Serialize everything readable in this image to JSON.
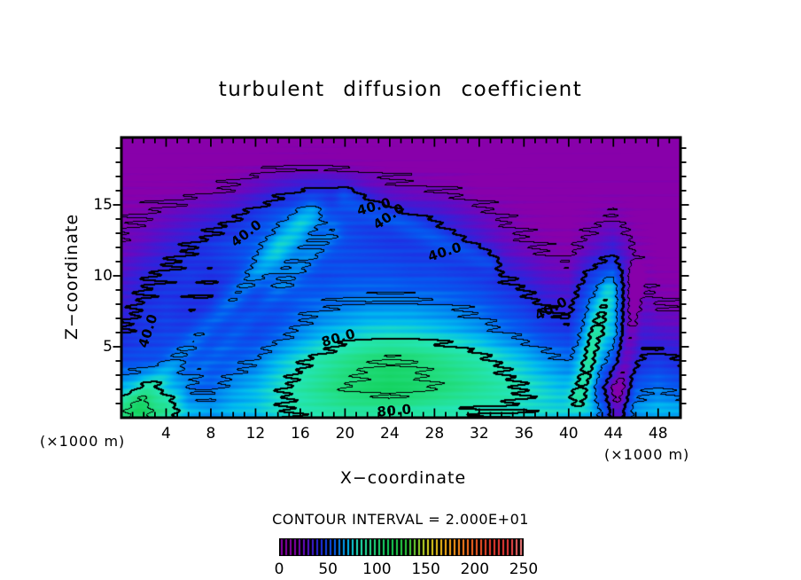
{
  "title": "turbulent diffusion coefficient",
  "axis": {
    "x_label": "X−coordinate",
    "z_label": "Z−coordinate",
    "unit_left": "(×1000 m)",
    "unit_right": "(×1000 m)"
  },
  "contour_note": "CONTOUR INTERVAL = 2.000E+01",
  "chart_data": {
    "type": "heatmap",
    "title": "turbulent diffusion coefficient",
    "xlabel": "X−coordinate",
    "ylabel": "Z−coordinate",
    "x_units": "×1000 m",
    "z_units": "×1000 m",
    "xlim": [
      0,
      50
    ],
    "zlim": [
      0,
      19.75
    ],
    "x_ticks_labeled": [
      4,
      8,
      12,
      16,
      20,
      24,
      28,
      32,
      36,
      40,
      44,
      48
    ],
    "z_ticks_labeled": [
      5,
      10,
      15
    ],
    "minor_tick_step": 1,
    "grid": false,
    "contour_interval": 20,
    "contour_levels": [
      20,
      40,
      60,
      80,
      100
    ],
    "thick_levels": [
      40,
      80
    ],
    "x": [
      0,
      2,
      4,
      6,
      8,
      10,
      12,
      14,
      16,
      18,
      20,
      22,
      24,
      26,
      28,
      30,
      32,
      34,
      36,
      38,
      40,
      42,
      44,
      46,
      48,
      50
    ],
    "z": [
      19.5,
      18,
      16,
      14,
      12,
      10,
      8,
      6,
      4,
      2,
      0.5
    ],
    "values": [
      [
        12,
        12,
        12,
        12,
        12,
        12,
        12,
        13,
        13,
        13,
        13,
        12,
        12,
        12,
        12,
        12,
        12,
        12,
        12,
        12,
        12,
        12,
        12,
        12,
        12,
        12
      ],
      [
        13,
        13,
        13,
        13,
        13,
        13,
        14,
        15,
        16,
        16,
        15,
        14,
        13,
        13,
        13,
        13,
        13,
        13,
        13,
        13,
        13,
        13,
        13,
        13,
        13,
        13
      ],
      [
        15,
        15,
        15,
        16,
        18,
        22,
        28,
        35,
        40,
        42,
        38,
        30,
        25,
        22,
        20,
        18,
        14,
        14,
        14,
        14,
        14,
        14,
        14,
        14,
        14,
        14
      ],
      [
        18,
        20,
        25,
        30,
        35,
        40,
        48,
        55,
        60,
        55,
        50,
        46,
        42,
        40,
        38,
        32,
        26,
        20,
        16,
        14,
        13,
        16,
        20,
        14,
        12,
        12
      ],
      [
        22,
        28,
        35,
        40,
        45,
        50,
        55,
        62,
        58,
        52,
        50,
        48,
        46,
        45,
        44,
        40,
        35,
        28,
        22,
        18,
        16,
        25,
        35,
        18,
        13,
        12
      ],
      [
        30,
        38,
        42,
        45,
        42,
        45,
        50,
        55,
        52,
        50,
        52,
        52,
        52,
        50,
        50,
        48,
        45,
        40,
        35,
        28,
        25,
        45,
        55,
        25,
        15,
        14
      ],
      [
        35,
        42,
        45,
        42,
        40,
        45,
        42,
        48,
        55,
        58,
        60,
        62,
        62,
        62,
        60,
        58,
        55,
        50,
        45,
        38,
        35,
        60,
        65,
        30,
        20,
        18
      ],
      [
        40,
        45,
        48,
        45,
        42,
        45,
        48,
        55,
        62,
        68,
        72,
        75,
        76,
        75,
        73,
        70,
        66,
        60,
        55,
        48,
        45,
        68,
        70,
        35,
        30,
        28
      ],
      [
        50,
        52,
        50,
        46,
        48,
        55,
        60,
        70,
        78,
        85,
        92,
        98,
        102,
        100,
        95,
        90,
        85,
        78,
        72,
        65,
        60,
        70,
        55,
        40,
        45,
        40
      ],
      [
        70,
        75,
        65,
        55,
        58,
        65,
        70,
        78,
        85,
        92,
        100,
        105,
        108,
        105,
        100,
        95,
        90,
        85,
        80,
        75,
        70,
        65,
        25,
        55,
        60,
        55
      ],
      [
        95,
        100,
        85,
        70,
        65,
        70,
        72,
        78,
        82,
        85,
        88,
        88,
        88,
        86,
        84,
        82,
        80,
        80,
        78,
        76,
        74,
        70,
        45,
        65,
        70,
        68
      ]
    ],
    "streaks": [
      {
        "x1": 1.5,
        "z1": 1.0,
        "x2": 17.0,
        "z2": 14.5,
        "amp": 14,
        "width": 1.0
      },
      {
        "x1": 4.0,
        "z1": 1.0,
        "x2": 19.0,
        "z2": 13.0,
        "amp": 8,
        "width": 0.8
      },
      {
        "x1": 20.0,
        "z1": 15.5,
        "x2": 33.0,
        "z2": 11.0,
        "amp": 12,
        "width": 0.8
      },
      {
        "x1": 41.0,
        "z1": 1.5,
        "x2": 43.5,
        "z2": 9.0,
        "amp": 16,
        "width": 0.9
      },
      {
        "x1": 44.5,
        "z1": 0.5,
        "x2": 46.0,
        "z2": 10.0,
        "amp": -22,
        "width": 0.8
      }
    ],
    "contour_labels": [
      {
        "text": "40.0",
        "x": 11.2,
        "z": 13.0,
        "angle": -38
      },
      {
        "text": "40.0",
        "x": 22.6,
        "z": 14.9,
        "angle": -15
      },
      {
        "text": "40.0",
        "x": 23.9,
        "z": 14.2,
        "angle": -35
      },
      {
        "text": "40.0",
        "x": 28.9,
        "z": 11.7,
        "angle": -18
      },
      {
        "text": "40.0",
        "x": 2.4,
        "z": 6.1,
        "angle": -72
      },
      {
        "text": "40.0",
        "x": 38.4,
        "z": 7.7,
        "angle": -28
      },
      {
        "text": "80.0",
        "x": 19.4,
        "z": 5.6,
        "angle": -16
      },
      {
        "text": "80.0",
        "x": 24.4,
        "z": 0.5,
        "angle": -5
      }
    ],
    "colormap": [
      [
        0,
        136,
        0,
        170
      ],
      [
        15,
        136,
        0,
        170
      ],
      [
        25,
        100,
        10,
        195
      ],
      [
        40,
        35,
        40,
        225
      ],
      [
        55,
        5,
        90,
        240
      ],
      [
        70,
        0,
        185,
        240
      ],
      [
        80,
        35,
        230,
        185
      ],
      [
        95,
        35,
        222,
        130
      ],
      [
        110,
        20,
        210,
        95
      ],
      [
        130,
        45,
        205,
        60
      ],
      [
        150,
        215,
        220,
        35
      ],
      [
        170,
        255,
        175,
        20
      ],
      [
        190,
        255,
        120,
        30
      ],
      [
        215,
        238,
        60,
        45
      ],
      [
        235,
        238,
        60,
        60
      ],
      [
        250,
        248,
        145,
        145
      ]
    ],
    "colorbar": {
      "min": 0,
      "max": 250,
      "ticks": [
        0,
        50,
        100,
        150,
        200,
        250
      ]
    }
  }
}
